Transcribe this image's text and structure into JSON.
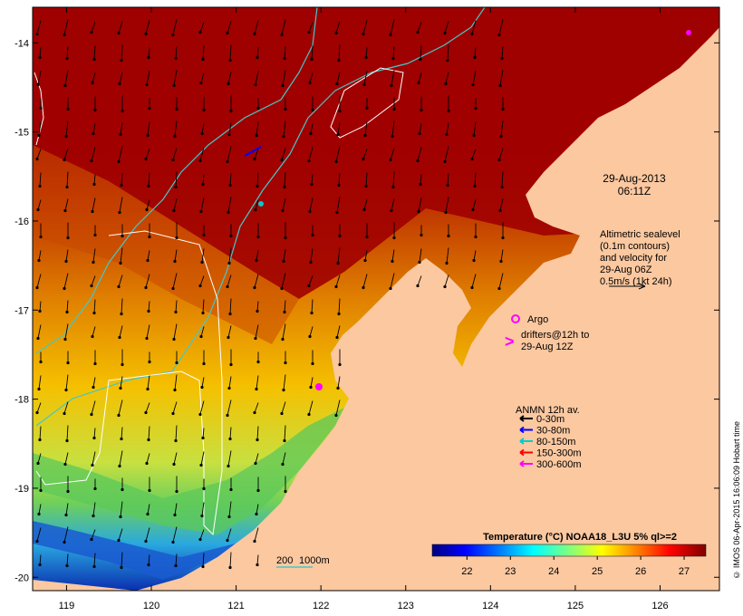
{
  "map": {
    "lon_ticks": [
      "119",
      "120",
      "121",
      "122",
      "123",
      "124",
      "125",
      "126"
    ],
    "lat_ticks": [
      "-14",
      "-15",
      "-16",
      "-17",
      "-18",
      "-19",
      "-20"
    ],
    "lon_range": [
      118.6,
      126.7
    ],
    "lat_range": [
      -20.15,
      -13.6
    ]
  },
  "timestamp": {
    "date": "29-Aug-2013",
    "time": "06:11Z"
  },
  "altimetry": {
    "line1": "Altimetric sealevel",
    "line2": "(0.1m contours)",
    "line3": "and velocity for",
    "line4": "29-Aug 06Z",
    "line5": "0.5m/s (1kt 24h)"
  },
  "argo_label": "Argo",
  "drifters": {
    "line1": "drifters@12h to",
    "line2": "29-Aug 12Z",
    "symbol": ">"
  },
  "anmn": {
    "title": "ANMN 12h av.",
    "items": [
      {
        "label": "0-30m",
        "color": "#000000"
      },
      {
        "label": "30-80m",
        "color": "#0000ff"
      },
      {
        "label": "80-150m",
        "color": "#00cccc"
      },
      {
        "label": "150-300m",
        "color": "#ff0000"
      },
      {
        "label": "300-600m",
        "color": "#ff00ff"
      }
    ]
  },
  "scale_bar": {
    "label1": "200",
    "label2": "1000m"
  },
  "colorbar": {
    "title": "Temperature (°C) NOAA18_L3U 5% ql>=2",
    "ticks": [
      "22",
      "23",
      "24",
      "25",
      "26",
      "27"
    ],
    "colors": [
      "#00007f",
      "#0000ff",
      "#007fff",
      "#00ffff",
      "#7fff7f",
      "#ffff00",
      "#ff7f00",
      "#ff0000",
      "#7f0000"
    ]
  },
  "copyright": "© IMOS 06-Apr-2015 16:06:09 Hobart time",
  "colors": {
    "land": "#fbc8a0",
    "warm_sea": "#a00000",
    "contour_200": "#44c8c8",
    "contour_1000": "#ffffff"
  }
}
